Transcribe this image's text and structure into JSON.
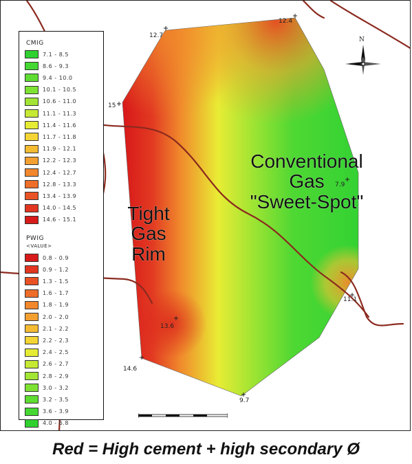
{
  "legend": {
    "cmig_title": "CMIG",
    "pwig_title": "PWIG",
    "pwig_sub": "<VALUE>",
    "cmig": [
      {
        "range": "7.1 - 8.5",
        "color": "#2fd12f"
      },
      {
        "range": "8.6 - 9.3",
        "color": "#45d832"
      },
      {
        "range": "9.4 - 10.0",
        "color": "#5fdd32"
      },
      {
        "range": "10.1 - 10.5",
        "color": "#7ee233"
      },
      {
        "range": "10.6 - 11.0",
        "color": "#a2e534"
      },
      {
        "range": "11.1 - 11.3",
        "color": "#c6e934"
      },
      {
        "range": "11.4 - 11.6",
        "color": "#e6ec34"
      },
      {
        "range": "11.7 - 11.8",
        "color": "#f4d535"
      },
      {
        "range": "11.9 - 12.1",
        "color": "#f5bb33"
      },
      {
        "range": "12.2 - 12.3",
        "color": "#f4a030"
      },
      {
        "range": "12.4 - 12.7",
        "color": "#f2872c"
      },
      {
        "range": "12.8 - 13.3",
        "color": "#ee6d28"
      },
      {
        "range": "13.4 - 13.9",
        "color": "#e95224"
      },
      {
        "range": "14.0 - 14.5",
        "color": "#e23620"
      },
      {
        "range": "14.6 - 15.1",
        "color": "#d81a1a"
      }
    ],
    "pwig": [
      {
        "range": "0.8 - 0.9",
        "color": "#d81a1a"
      },
      {
        "range": "0.9 - 1.2",
        "color": "#e23620"
      },
      {
        "range": "1.3 - 1.5",
        "color": "#e95224"
      },
      {
        "range": "1.6 - 1.7",
        "color": "#ee6d28"
      },
      {
        "range": "1.8 - 1.9",
        "color": "#f2872c"
      },
      {
        "range": "2.0 - 2.0",
        "color": "#f4a030"
      },
      {
        "range": "2.1 - 2.2",
        "color": "#f5bb33"
      },
      {
        "range": "2.2 - 2.3",
        "color": "#f4d535"
      },
      {
        "range": "2.4 - 2.5",
        "color": "#e6ec34"
      },
      {
        "range": "2.6 - 2.7",
        "color": "#c6e934"
      },
      {
        "range": "2.8 - 2.9",
        "color": "#a2e534"
      },
      {
        "range": "3.0 - 3.2",
        "color": "#7ee233"
      },
      {
        "range": "3.2 - 3.5",
        "color": "#5fdd32"
      },
      {
        "range": "3.6 - 3.9",
        "color": "#45d832"
      },
      {
        "range": "4.0 - 6.8",
        "color": "#2fd12f"
      }
    ]
  },
  "labels": {
    "tight_line1": "Tight",
    "tight_line2": "Gas",
    "tight_line3": "Rim",
    "conv_line1": "Conventional",
    "conv_line2": "Gas",
    "conv_line3": "\"Sweet-Spot\""
  },
  "wells": [
    {
      "label": "12.4"
    },
    {
      "label": "12.7"
    },
    {
      "label": "15"
    },
    {
      "label": "7.9"
    },
    {
      "label": "11.1"
    },
    {
      "label": "13.6"
    },
    {
      "label": "14.6"
    },
    {
      "label": "9.7"
    }
  ],
  "north_label": "N",
  "caption": "Red = High cement + high secondary Ø",
  "colors": {
    "high": "#d81a1a",
    "mid_high": "#f08a2c",
    "mid": "#e9ec34",
    "low": "#33d233",
    "road": "#8b2a1f"
  }
}
